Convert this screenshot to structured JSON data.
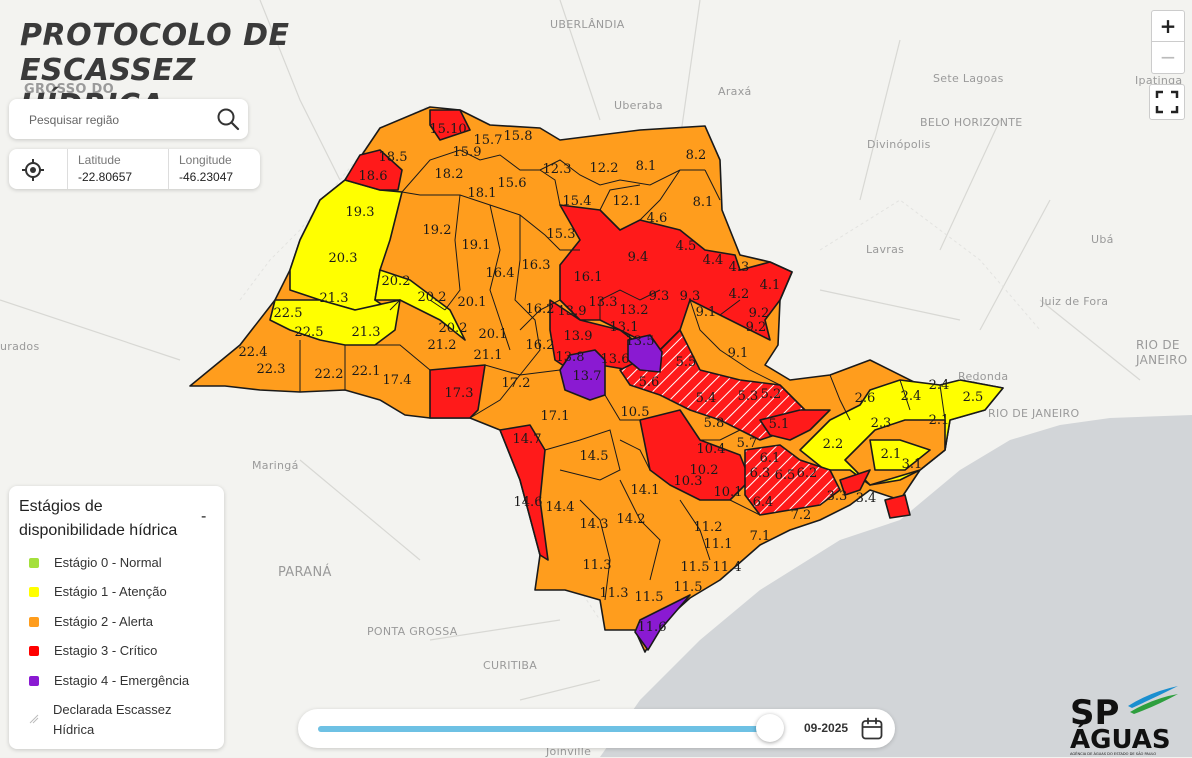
{
  "title": "PROTOCOLO DE ESCASSEZ HÍDRICA",
  "search": {
    "placeholder": "Pesquisar região"
  },
  "coordinates": {
    "lat_label": "Latitude",
    "lat_value": "-22.80657",
    "lon_label": "Longitude",
    "lon_value": "-46.23047"
  },
  "zoom": {
    "in": "+",
    "out": "−"
  },
  "legend": {
    "title": "Estágios de disponibilidade hídrica",
    "collapse": "-",
    "items": [
      {
        "label": "Estágio 0 - Normal",
        "color": "#a4e03c"
      },
      {
        "label": "Estágio 1 - Atenção",
        "color": "#ffff00"
      },
      {
        "label": "Estágio 2 - Alerta",
        "color": "#ff9d1d"
      },
      {
        "label": "Estagio 3 - Crítico",
        "color": "#ff0000"
      },
      {
        "label": "Estagio 4 - Emergência",
        "color": "#8a1ad2"
      },
      {
        "label": "Declarada Escassez Hídrica",
        "icon": "hatch-icon"
      }
    ]
  },
  "timeline": {
    "date": "09-2025",
    "position": 1.0,
    "icon": "calendar-icon"
  },
  "logo": {
    "text": "SP ÁGUAS",
    "subtitle": "AGÊNCIA DE ÁGUAS DO ESTADO DE SÃO PAULO"
  },
  "basemap_labels": [
    "UBERLÂNDIA",
    "GROSSO DO",
    "Uberaba",
    "Araxá",
    "Sete Lagoas",
    "Ipatinga",
    "BELO HORIZONTE",
    "Divinópolis",
    "Lavras",
    "Ubá",
    "Juiz de Fora",
    "RIO DE JANEIRO",
    "Redonda",
    "RIO DE JANEIRO",
    "urados",
    "Maringá",
    "PARANÁ",
    "PONTA GROSSA",
    "CURITIBA",
    "Joinville"
  ],
  "regions": [
    {
      "id": "15.10",
      "stage": 3
    },
    {
      "id": "15.7",
      "stage": 2
    },
    {
      "id": "15.8",
      "stage": 2
    },
    {
      "id": "18.5",
      "stage": 2
    },
    {
      "id": "18.6",
      "stage": 3
    },
    {
      "id": "15.9",
      "stage": 2
    },
    {
      "id": "18.2",
      "stage": 2
    },
    {
      "id": "18.1",
      "stage": 2
    },
    {
      "id": "15.6",
      "stage": 2
    },
    {
      "id": "12.3",
      "stage": 2
    },
    {
      "id": "12.2",
      "stage": 2
    },
    {
      "id": "8.1",
      "stage": 2
    },
    {
      "id": "8.2",
      "stage": 2
    },
    {
      "id": "19.3",
      "stage": 1
    },
    {
      "id": "19.2",
      "stage": 2
    },
    {
      "id": "19.1",
      "stage": 2
    },
    {
      "id": "15.4",
      "stage": 2
    },
    {
      "id": "12.1",
      "stage": 2
    },
    {
      "id": "8.1b",
      "stage": 2
    },
    {
      "id": "4.6",
      "stage": 2
    },
    {
      "id": "15.3",
      "stage": 3
    },
    {
      "id": "20.3",
      "stage": 1
    },
    {
      "id": "20.2",
      "stage": 1
    },
    {
      "id": "16.4",
      "stage": 2
    },
    {
      "id": "16.3",
      "stage": 2
    },
    {
      "id": "16.1",
      "stage": 3
    },
    {
      "id": "9.4",
      "stage": 3
    },
    {
      "id": "4.5",
      "stage": 3
    },
    {
      "id": "4.4",
      "stage": 2
    },
    {
      "id": "4.3",
      "stage": 3
    },
    {
      "id": "4.1",
      "stage": 3
    },
    {
      "id": "21.3",
      "stage": 1
    },
    {
      "id": "20.2b",
      "stage": 1
    },
    {
      "id": "20.1",
      "stage": 2
    },
    {
      "id": "13.3",
      "stage": 3
    },
    {
      "id": "9.3",
      "stage": 3
    },
    {
      "id": "9.3b",
      "stage": 3
    },
    {
      "id": "4.2",
      "stage": 3
    },
    {
      "id": "9.2",
      "stage": 3
    },
    {
      "id": "22.5",
      "stage": 1
    },
    {
      "id": "22.5b",
      "stage": 1
    },
    {
      "id": "21.3b",
      "stage": 1
    },
    {
      "id": "20.2c",
      "stage": 1
    },
    {
      "id": "16.2",
      "stage": 2
    },
    {
      "id": "13.9",
      "stage": 3
    },
    {
      "id": "13.2",
      "stage": 3
    },
    {
      "id": "9.1",
      "stage": 2
    },
    {
      "id": "9.2b",
      "stage": 3
    },
    {
      "id": "13.1",
      "stage": 3
    },
    {
      "id": "22.4",
      "stage": 2
    },
    {
      "id": "21.2",
      "stage": 2
    },
    {
      "id": "20.1b",
      "stage": 2
    },
    {
      "id": "13.9b",
      "stage": 3
    },
    {
      "id": "13.5",
      "stage": 4
    },
    {
      "id": "9.1b",
      "stage": 2
    },
    {
      "id": "22.3",
      "stage": 2
    },
    {
      "id": "21.1",
      "stage": 2
    },
    {
      "id": "16.2b",
      "stage": 2
    },
    {
      "id": "13.8",
      "stage": 3
    },
    {
      "id": "13.6",
      "stage": 3
    },
    {
      "id": "5.5",
      "stage": 3,
      "declared": true
    },
    {
      "id": "22.2",
      "stage": 2
    },
    {
      "id": "22.1",
      "stage": 2
    },
    {
      "id": "17.4",
      "stage": 2
    },
    {
      "id": "17.3",
      "stage": 3
    },
    {
      "id": "17.2",
      "stage": 2
    },
    {
      "id": "13.7",
      "stage": 4
    },
    {
      "id": "5.6",
      "stage": 3,
      "declared": true
    },
    {
      "id": "5.4",
      "stage": 3,
      "declared": true
    },
    {
      "id": "5.3",
      "stage": 3,
      "declared": true
    },
    {
      "id": "5.2",
      "stage": 3,
      "declared": true
    },
    {
      "id": "2.6",
      "stage": 2
    },
    {
      "id": "2.4",
      "stage": 2
    },
    {
      "id": "2.4b",
      "stage": 2
    },
    {
      "id": "2.5",
      "stage": 1
    },
    {
      "id": "17.1",
      "stage": 2
    },
    {
      "id": "10.5",
      "stage": 2
    },
    {
      "id": "5.8",
      "stage": 3
    },
    {
      "id": "5.1",
      "stage": 3,
      "declared": true
    },
    {
      "id": "2.2",
      "stage": 1
    },
    {
      "id": "2.3",
      "stage": 2
    },
    {
      "id": "2.1",
      "stage": 1
    },
    {
      "id": "2.1b",
      "stage": 1
    },
    {
      "id": "14.7",
      "stage": 3
    },
    {
      "id": "14.5",
      "stage": 2
    },
    {
      "id": "10.4",
      "stage": 2
    },
    {
      "id": "5.7",
      "stage": 2
    },
    {
      "id": "6.1",
      "stage": 3,
      "declared": true
    },
    {
      "id": "10.2",
      "stage": 3
    },
    {
      "id": "6.3",
      "stage": 3,
      "declared": true
    },
    {
      "id": "6.5",
      "stage": 3,
      "declared": true
    },
    {
      "id": "6.2",
      "stage": 3,
      "declared": true
    },
    {
      "id": "14.1",
      "stage": 2
    },
    {
      "id": "10.3",
      "stage": 3
    },
    {
      "id": "10.1",
      "stage": 2
    },
    {
      "id": "6.4",
      "stage": 3,
      "declared": true
    },
    {
      "id": "3.3",
      "stage": 2
    },
    {
      "id": "3.4",
      "stage": 1
    },
    {
      "id": "3.1",
      "stage": 3
    },
    {
      "id": "14.6",
      "stage": 3
    },
    {
      "id": "14.4",
      "stage": 2
    },
    {
      "id": "14.3",
      "stage": 2
    },
    {
      "id": "14.2",
      "stage": 2
    },
    {
      "id": "7.2",
      "stage": 2
    },
    {
      "id": "11.2",
      "stage": 2
    },
    {
      "id": "11.1",
      "stage": 2
    },
    {
      "id": "7.1",
      "stage": 2
    },
    {
      "id": "11.3",
      "stage": 2
    },
    {
      "id": "11.5",
      "stage": 2
    },
    {
      "id": "11.4",
      "stage": 2
    },
    {
      "id": "11.5b",
      "stage": 2
    },
    {
      "id": "11.3b",
      "stage": 2
    },
    {
      "id": "11.5c",
      "stage": 2
    },
    {
      "id": "11.6",
      "stage": 4
    }
  ]
}
